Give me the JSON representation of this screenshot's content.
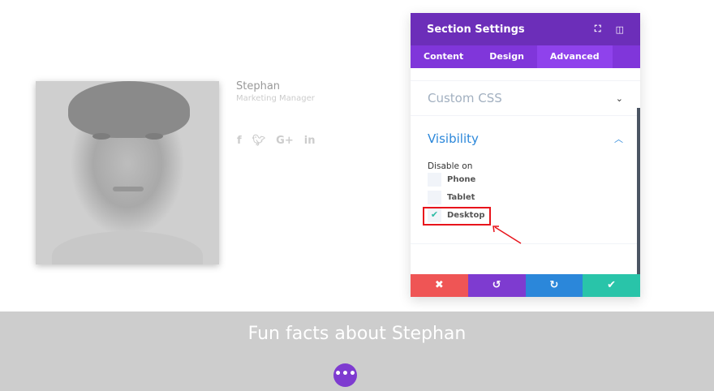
{
  "profile": {
    "name": "Stephan",
    "role": "Marketing Manager",
    "social": [
      "f",
      "t",
      "G+",
      "in"
    ]
  },
  "band": {
    "title": "Fun facts about Stephan"
  },
  "fab": {
    "label": "•••"
  },
  "panel": {
    "title": "Section Settings",
    "tabs": [
      "Content",
      "Design",
      "Advanced"
    ],
    "active_tab": "Advanced",
    "sections": [
      {
        "label": "Custom CSS",
        "expanded": false
      },
      {
        "label": "Visibility",
        "expanded": true
      }
    ],
    "disable_on_label": "Disable on",
    "options": [
      {
        "label": "Phone",
        "checked": false
      },
      {
        "label": "Tablet",
        "checked": false
      },
      {
        "label": "Desktop",
        "checked": true
      }
    ],
    "footer": {
      "colors": [
        "#ef5555",
        "#7e3bd0",
        "#2b87da",
        "#29c4a9"
      ]
    }
  },
  "colors": {
    "header": "#6c2eb9",
    "tabs": "#8036da",
    "accent": "#2b87da"
  }
}
